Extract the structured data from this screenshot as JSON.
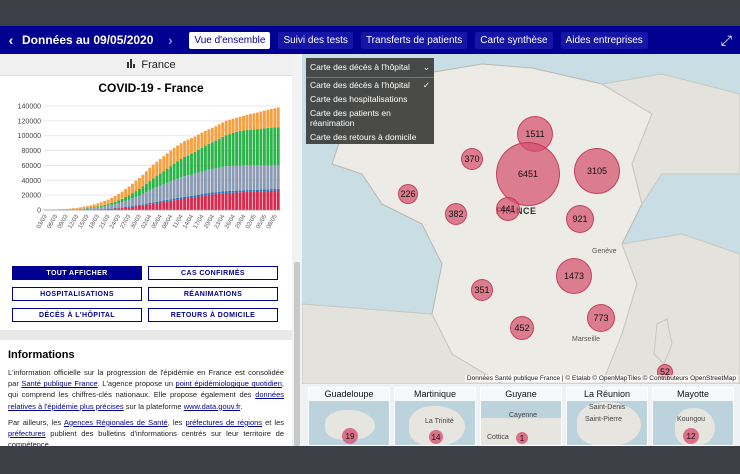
{
  "topbar": {
    "date_label": "Données au 09/05/2020",
    "tabs": [
      {
        "label": "Vue d'ensemble",
        "active": true
      },
      {
        "label": "Suivi des tests"
      },
      {
        "label": "Transferts de patients"
      },
      {
        "label": "Carte synthèse"
      },
      {
        "label": "Aides entreprises"
      }
    ]
  },
  "left": {
    "country": "France",
    "chart_title": "COVID-19 - France",
    "buttons": [
      "TOUT AFFICHER",
      "CAS CONFIRMÉS",
      "HOSPITALISATIONS",
      "RÉANIMATIONS",
      "DÉCÈS À L'HÔPITAL",
      "RETOURS À DOMICILE"
    ],
    "info_title": "Informations",
    "info_p1": [
      "L'information officielle sur la progression de l'épidémie en France est consolidée par ",
      "Santé publique France",
      ". L'agence propose un ",
      "point épidémiologique quotidien",
      ", qui comprend les chiffres-clés nationaux. Elle propose également des ",
      "données relatives à l'épidémie plus précises",
      " sur la plateforme ",
      "www.data.gouv.fr",
      "."
    ],
    "info_p2": [
      "Par ailleurs, les ",
      "Agences Régionales de Santé",
      ", les ",
      "préfectures de régions",
      " et les ",
      "préfectures",
      " publient des bulletins d'informations centrés sur leur territoire de compétence."
    ]
  },
  "chart_data": {
    "type": "bar",
    "stacked": true,
    "yticks": [
      "0",
      "20000",
      "40000",
      "60000",
      "80000",
      "100000",
      "120000",
      "140000"
    ],
    "ylim": [
      0,
      140000
    ],
    "xtick_labels": [
      "03/03",
      "06/03",
      "09/03",
      "12/03",
      "15/03",
      "18/03",
      "21/03",
      "24/03",
      "27/03",
      "30/03",
      "02/04",
      "05/04",
      "08/04",
      "11/04",
      "14/04",
      "17/04",
      "20/04",
      "23/04",
      "26/04",
      "29/04",
      "02/05",
      "05/05",
      "08/05"
    ],
    "colors": {
      "deces": "#d62b4f",
      "hospitalisations": "#8c9bb3",
      "reanimations": "#1f77b4",
      "retours": "#2cb34a",
      "cas": "#f5a142"
    },
    "series_keys": [
      "deces",
      "reanimations",
      "hospitalisations",
      "retours",
      "cas"
    ],
    "days": 68,
    "approx_totals_by_tick": [
      200,
      700,
      1400,
      2900,
      5400,
      9100,
      14500,
      22300,
      33000,
      44500,
      59100,
      70500,
      82000,
      92000,
      98000,
      106000,
      112000,
      120000,
      124000,
      128000,
      131000,
      135000,
      138000
    ]
  },
  "map": {
    "menu_header": "Carte des décès à l'hôpital",
    "menu_options": [
      {
        "label": "Carte des décès à l'hôpital",
        "checked": true
      },
      {
        "label": "Carte des hospitalisations"
      },
      {
        "label": "Carte des patients en réanimation"
      },
      {
        "label": "Carte des retours à domicile"
      }
    ],
    "country_label": "FRANCE",
    "places": [
      "Genève",
      "Marseille"
    ],
    "bubbles": [
      "1511",
      "370",
      "6451",
      "3105",
      "226",
      "441",
      "382",
      "921",
      "1473",
      "351",
      "773",
      "452",
      "52"
    ],
    "attribution": "Données Santé publique France | © Etalab © OpenMapTiles © Contributeurs OpenStreetMap"
  },
  "overseas": [
    {
      "name": "Guadeloupe",
      "value": "19"
    },
    {
      "name": "Martinique",
      "value": "14",
      "place": "La Trinité"
    },
    {
      "name": "Guyane",
      "value": "1",
      "place": "Cayenne",
      "place2": "Cottica"
    },
    {
      "name": "La Réunion",
      "place": "Saint-Denis",
      "place2": "Saint-Pierre"
    },
    {
      "name": "Mayotte",
      "value": "12",
      "place": "Koungou"
    }
  ]
}
